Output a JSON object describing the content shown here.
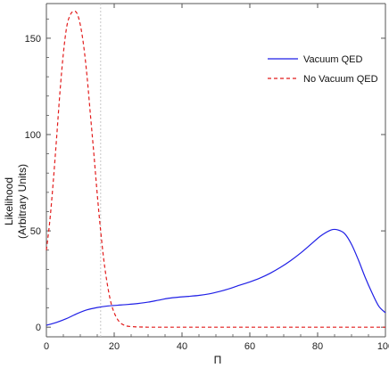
{
  "chart_data": {
    "type": "line",
    "xlabel": "Π",
    "ylabel_lines": [
      "Likelihood",
      "(Arbitrary Units)"
    ],
    "xlim": [
      0,
      100
    ],
    "ylim": [
      -5,
      168
    ],
    "x_ticks": [
      0,
      20,
      40,
      60,
      80,
      100
    ],
    "y_ticks": [
      0,
      50,
      100,
      150
    ],
    "reference_line_x": 16,
    "grid": false,
    "legend_position": "top-right",
    "series": [
      {
        "name": "Vacuum QED",
        "color": "#1f1fe6",
        "style": "solid",
        "x": [
          0,
          3,
          6,
          9,
          12,
          15,
          18,
          21,
          24,
          27,
          30,
          33,
          36,
          39,
          42,
          45,
          48,
          51,
          54,
          57,
          60,
          63,
          66,
          69,
          72,
          75,
          78,
          81,
          84,
          86,
          88,
          90,
          92,
          94,
          96,
          98,
          100
        ],
        "y": [
          1,
          2.5,
          4.5,
          7,
          9,
          10.2,
          11,
          11.4,
          11.8,
          12.3,
          13,
          14,
          15,
          15.6,
          16,
          16.5,
          17.3,
          18.5,
          20,
          21.8,
          23.5,
          25.5,
          28,
          31,
          34.5,
          38.5,
          43,
          47.5,
          50.5,
          50.5,
          48.5,
          43,
          35,
          26,
          18,
          11,
          7.5
        ]
      },
      {
        "name": "No Vacuum QED",
        "color": "#e21b1b",
        "style": "dashed",
        "x": [
          0,
          1,
          2,
          3,
          4,
          5,
          6,
          7,
          8,
          9,
          10,
          11,
          12,
          13,
          14,
          15,
          16,
          17,
          18,
          19,
          20,
          21,
          22,
          23,
          24,
          26,
          28,
          30,
          35,
          40,
          50,
          60,
          70,
          80,
          90,
          100
        ],
        "y": [
          40,
          55,
          75,
          98,
          122,
          142,
          156,
          162,
          164,
          163,
          157,
          146,
          130,
          110,
          90,
          69,
          50,
          34,
          22,
          13,
          7.5,
          4,
          2,
          1,
          0.5,
          0.2,
          0.1,
          0,
          0,
          0,
          0,
          0,
          0,
          0,
          0,
          0
        ]
      }
    ]
  }
}
